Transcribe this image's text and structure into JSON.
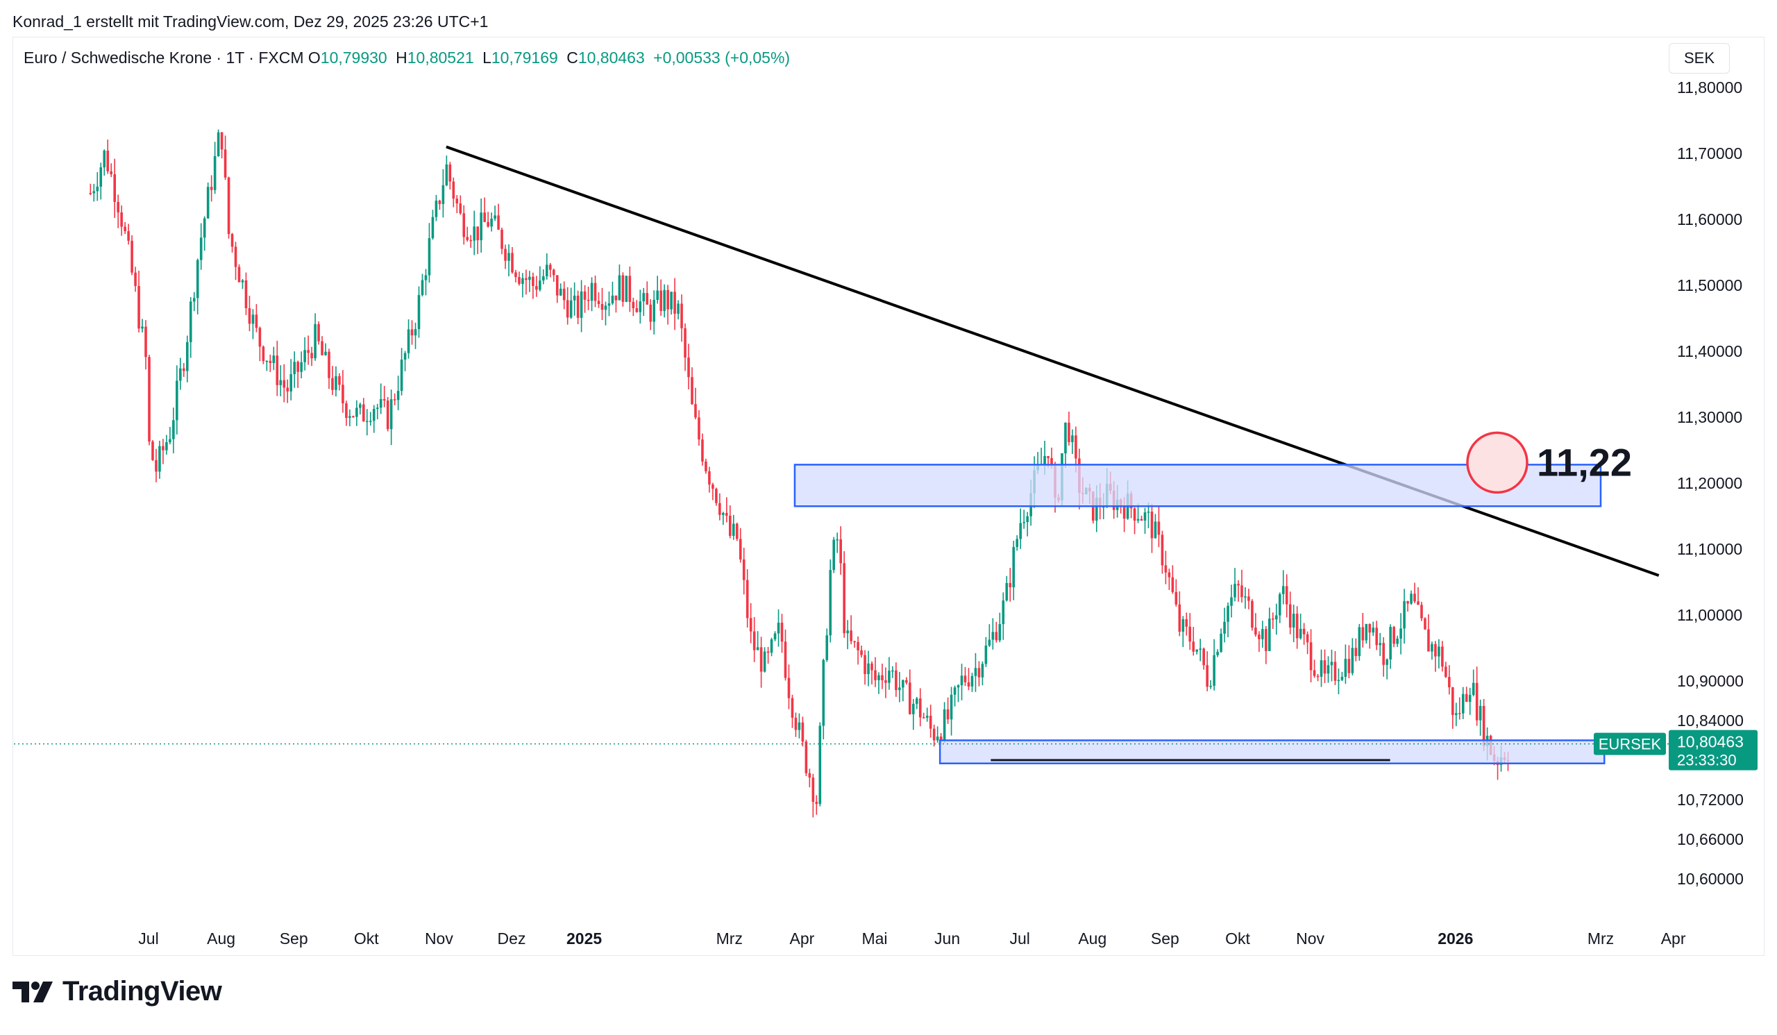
{
  "header": {
    "attribution": "Konrad_1 erstellt mit TradingView.com, Dez 29, 2025 23:26 UTC+1"
  },
  "legend": {
    "symbol": "Euro / Schwedische Krone · 1T · FXCM",
    "open_label": "O",
    "open": "10,79930",
    "high_label": "H",
    "high": "10,80521",
    "low_label": "L",
    "low": "10,79169",
    "close_label": "C",
    "close": "10,80463",
    "change": "+0,00533 (+0,05%)"
  },
  "currency": "SEK",
  "brand": {
    "name": "TradingView"
  },
  "colors": {
    "up": "#089981",
    "down": "#f23645",
    "zone_fill": "#d6dcff",
    "zone_stroke": "#2962ff",
    "trendline": "#000000",
    "marker": "#f23645"
  },
  "chart_data": {
    "type": "candlestick",
    "symbol": "EURSEK",
    "ylim": [
      10.56,
      11.84
    ],
    "y_ticks": [
      {
        "value": 11.8,
        "label": "11,80000"
      },
      {
        "value": 11.7,
        "label": "11,70000"
      },
      {
        "value": 11.6,
        "label": "11,60000"
      },
      {
        "value": 11.5,
        "label": "11,50000"
      },
      {
        "value": 11.4,
        "label": "11,40000"
      },
      {
        "value": 11.3,
        "label": "11,30000"
      },
      {
        "value": 11.2,
        "label": "11,20000"
      },
      {
        "value": 11.1,
        "label": "11,10000"
      },
      {
        "value": 11.0,
        "label": "11,00000"
      },
      {
        "value": 10.9,
        "label": "10,90000"
      },
      {
        "value": 10.84,
        "label": "10,84000"
      },
      {
        "value": 10.72,
        "label": "10,72000"
      },
      {
        "value": 10.66,
        "label": "10,66000"
      },
      {
        "value": 10.6,
        "label": "10,60000"
      }
    ],
    "x_ticks": [
      {
        "m": 0,
        "label": "Jul",
        "bold": false
      },
      {
        "m": 1,
        "label": "Aug",
        "bold": false
      },
      {
        "m": 2,
        "label": "Sep",
        "bold": false
      },
      {
        "m": 3,
        "label": "Okt",
        "bold": false
      },
      {
        "m": 4,
        "label": "Nov",
        "bold": false
      },
      {
        "m": 5,
        "label": "Dez",
        "bold": false
      },
      {
        "m": 6,
        "label": "2025",
        "bold": true
      },
      {
        "m": 8,
        "label": "Mrz",
        "bold": false
      },
      {
        "m": 9,
        "label": "Apr",
        "bold": false
      },
      {
        "m": 10,
        "label": "Mai",
        "bold": false
      },
      {
        "m": 11,
        "label": "Jun",
        "bold": false
      },
      {
        "m": 12,
        "label": "Jul",
        "bold": false
      },
      {
        "m": 13,
        "label": "Aug",
        "bold": false
      },
      {
        "m": 14,
        "label": "Sep",
        "bold": false
      },
      {
        "m": 15,
        "label": "Okt",
        "bold": false
      },
      {
        "m": 16,
        "label": "Nov",
        "bold": false
      },
      {
        "m": 18,
        "label": "2026",
        "bold": true
      },
      {
        "m": 20,
        "label": "Mrz",
        "bold": false
      },
      {
        "m": 21,
        "label": "Apr",
        "bold": false
      }
    ],
    "price_path": [
      [
        -0.8,
        11.64
      ],
      [
        -0.6,
        11.7
      ],
      [
        -0.4,
        11.62
      ],
      [
        -0.2,
        11.5
      ],
      [
        0.0,
        11.36
      ],
      [
        -0.1,
        11.3
      ],
      [
        0.1,
        11.22
      ],
      [
        0.3,
        11.28
      ],
      [
        0.5,
        11.4
      ],
      [
        0.7,
        11.56
      ],
      [
        0.9,
        11.68
      ],
      [
        1.0,
        11.74
      ],
      [
        1.1,
        11.58
      ],
      [
        1.3,
        11.5
      ],
      [
        1.5,
        11.42
      ],
      [
        1.7,
        11.38
      ],
      [
        1.9,
        11.34
      ],
      [
        2.1,
        11.38
      ],
      [
        2.3,
        11.42
      ],
      [
        2.5,
        11.36
      ],
      [
        2.7,
        11.32
      ],
      [
        2.9,
        11.3
      ],
      [
        3.1,
        11.32
      ],
      [
        3.3,
        11.3
      ],
      [
        3.5,
        11.38
      ],
      [
        3.7,
        11.46
      ],
      [
        3.9,
        11.58
      ],
      [
        4.1,
        11.68
      ],
      [
        4.3,
        11.6
      ],
      [
        4.5,
        11.58
      ],
      [
        4.7,
        11.6
      ],
      [
        4.9,
        11.56
      ],
      [
        5.1,
        11.52
      ],
      [
        5.3,
        11.5
      ],
      [
        5.5,
        11.52
      ],
      [
        5.7,
        11.48
      ],
      [
        5.9,
        11.46
      ],
      [
        6.1,
        11.5
      ],
      [
        6.3,
        11.48
      ],
      [
        6.5,
        11.5
      ],
      [
        6.7,
        11.48
      ],
      [
        6.9,
        11.46
      ],
      [
        7.1,
        11.48
      ],
      [
        7.3,
        11.46
      ],
      [
        7.5,
        11.3
      ],
      [
        7.7,
        11.22
      ],
      [
        7.9,
        11.16
      ],
      [
        8.0,
        11.12
      ],
      [
        8.1,
        11.12
      ],
      [
        8.3,
        10.96
      ],
      [
        8.5,
        10.92
      ],
      [
        8.7,
        10.98
      ],
      [
        8.8,
        10.9
      ],
      [
        9.0,
        10.8
      ],
      [
        9.1,
        10.76
      ],
      [
        9.2,
        10.72
      ],
      [
        9.3,
        10.92
      ],
      [
        9.4,
        11.08
      ],
      [
        9.5,
        11.12
      ],
      [
        9.6,
        10.96
      ],
      [
        9.8,
        10.94
      ],
      [
        10.0,
        10.9
      ],
      [
        10.2,
        10.92
      ],
      [
        10.4,
        10.88
      ],
      [
        10.6,
        10.86
      ],
      [
        10.8,
        10.82
      ],
      [
        11.0,
        10.84
      ],
      [
        11.2,
        10.9
      ],
      [
        11.4,
        10.92
      ],
      [
        11.6,
        10.96
      ],
      [
        11.8,
        11.02
      ],
      [
        12.0,
        11.14
      ],
      [
        12.2,
        11.2
      ],
      [
        12.4,
        11.26
      ],
      [
        12.5,
        11.14
      ],
      [
        12.55,
        11.22
      ],
      [
        12.65,
        11.3
      ],
      [
        12.8,
        11.2
      ],
      [
        13.0,
        11.16
      ],
      [
        13.2,
        11.18
      ],
      [
        13.4,
        11.17
      ],
      [
        13.6,
        11.16
      ],
      [
        13.8,
        11.14
      ],
      [
        14.0,
        11.08
      ],
      [
        14.2,
        10.98
      ],
      [
        14.4,
        10.96
      ],
      [
        14.6,
        10.9
      ],
      [
        14.8,
        11.0
      ],
      [
        15.0,
        11.04
      ],
      [
        15.2,
        11.0
      ],
      [
        15.4,
        10.96
      ],
      [
        15.6,
        11.04
      ],
      [
        15.8,
        10.98
      ],
      [
        16.0,
        10.94
      ],
      [
        16.2,
        10.9
      ],
      [
        16.4,
        10.92
      ],
      [
        16.6,
        10.94
      ],
      [
        16.8,
        11.0
      ],
      [
        17.0,
        10.94
      ],
      [
        17.2,
        10.98
      ],
      [
        17.4,
        11.02
      ],
      [
        17.6,
        10.96
      ],
      [
        17.8,
        10.94
      ],
      [
        18.0,
        10.84
      ],
      [
        18.2,
        10.9
      ],
      [
        18.4,
        10.82
      ],
      [
        18.55,
        10.78
      ],
      [
        18.65,
        10.79
      ],
      [
        18.75,
        10.8
      ]
    ],
    "annotations": {
      "trendline": [
        [
          4.1,
          11.71
        ],
        [
          20.8,
          11.06
        ]
      ],
      "resistance_zone": {
        "m_start": 8.9,
        "m_end": 20.0,
        "y_low": 11.165,
        "y_high": 11.228
      },
      "support_zone": {
        "m_start": 10.9,
        "m_end": 20.05,
        "y_low": 10.775,
        "y_high": 10.81
      },
      "support_line": {
        "m_start": 11.6,
        "m_end": 17.1,
        "y": 10.78
      },
      "marker_label": "11,22",
      "last_price_label": "10,80463",
      "countdown": "23:33:30",
      "symbol_tag": "EURSEK",
      "last_price": 10.80463
    }
  }
}
